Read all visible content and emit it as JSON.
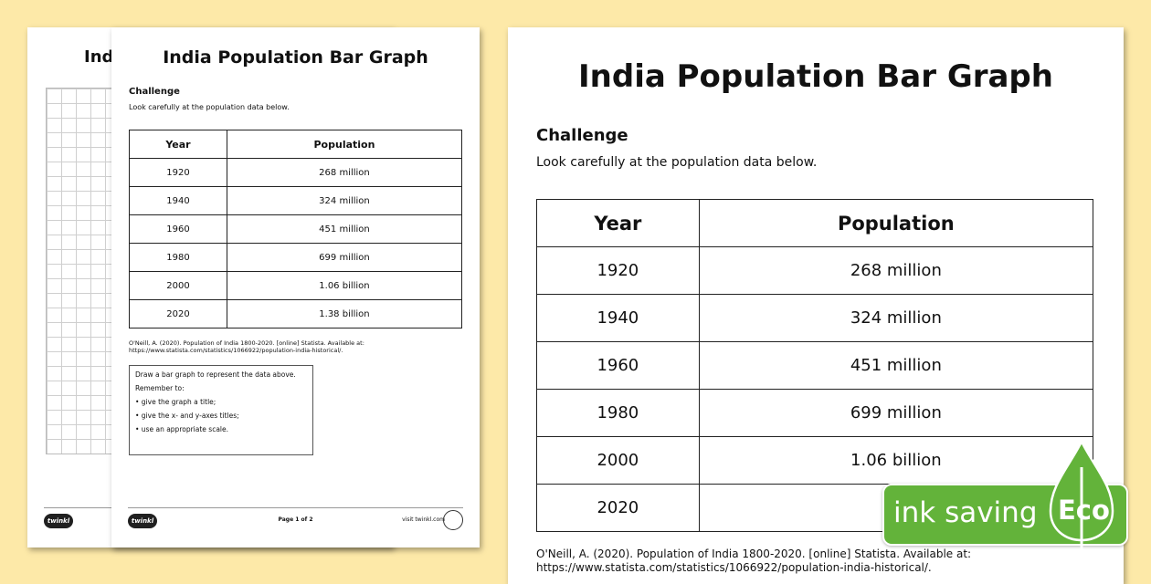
{
  "back_sheet": {
    "title": "Ind",
    "logo": "twinkl"
  },
  "mid_sheet": {
    "title": "India Population Bar Graph",
    "challenge": "Challenge",
    "intro": "Look carefully at the population data below.",
    "table": {
      "headers": [
        "Year",
        "Population"
      ],
      "rows": [
        [
          "1920",
          "268 million"
        ],
        [
          "1940",
          "324 million"
        ],
        [
          "1960",
          "451 million"
        ],
        [
          "1980",
          "699 million"
        ],
        [
          "2000",
          "1.06 billion"
        ],
        [
          "2020",
          "1.38 billion"
        ]
      ]
    },
    "source_line1": "O'Neill, A. (2020). Population of India 1800-2020. [online] Statista. Available at:",
    "source_line2": "https://www.statista.com/statistics/1066922/population-india-historical/.",
    "task": {
      "line1": "Draw a bar graph to represent the data above.",
      "line2": "Remember to:",
      "bullet1": "• give the graph a title;",
      "bullet2": "• give the x- and y-axes titles;",
      "bullet3": "• use an appropriate scale."
    },
    "logo": "twinkl",
    "page": "Page 1 of 2",
    "url": "visit twinkl.com"
  },
  "front_sheet": {
    "title": "India Population Bar Graph",
    "challenge": "Challenge",
    "intro": "Look carefully at the population data below.",
    "table": {
      "headers": [
        "Year",
        "Population"
      ],
      "rows": [
        [
          "1920",
          "268 million"
        ],
        [
          "1940",
          "324 million"
        ],
        [
          "1960",
          "451 million"
        ],
        [
          "1980",
          "699 million"
        ],
        [
          "2000",
          "1.06 billion"
        ],
        [
          "2020",
          ""
        ]
      ]
    },
    "source_line1": "O'Neill, A. (2020). Population of India 1800-2020. [online] Statista. Available at:",
    "source_line2": "https://www.statista.com/statistics/1066922/population-india-historical/."
  },
  "eco_badge": {
    "text": "ink saving",
    "label": "Eco",
    "color": "#63b33a"
  }
}
